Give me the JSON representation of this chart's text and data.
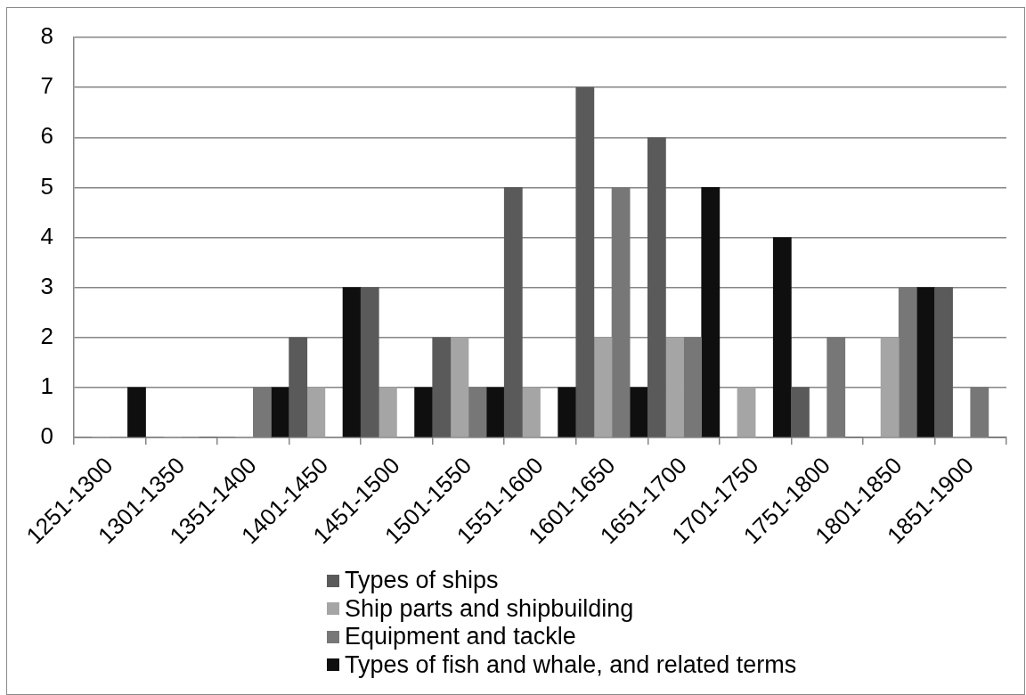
{
  "chart_data": {
    "type": "bar",
    "categories": [
      "1251-1300",
      "1301-1350",
      "1351-1400",
      "1401-1450",
      "1451-1500",
      "1501-1550",
      "1551-1600",
      "1601-1650",
      "1651-1700",
      "1701-1750",
      "1751-1800",
      "1801-1850",
      "1851-1900"
    ],
    "series": [
      {
        "name": "Types of ships",
        "color": "#5a5a5a",
        "values": [
          0,
          0,
          0,
          2,
          3,
          2,
          5,
          7,
          6,
          0,
          1,
          0,
          3
        ]
      },
      {
        "name": "Ship parts and shipbuilding",
        "color": "#a5a5a5",
        "values": [
          0,
          0,
          0,
          1,
          1,
          2,
          1,
          2,
          2,
          1,
          0,
          2,
          0
        ]
      },
      {
        "name": "Equipment and tackle",
        "color": "#777777",
        "values": [
          0,
          0,
          1,
          0,
          0,
          1,
          0,
          5,
          2,
          0,
          2,
          3,
          1
        ]
      },
      {
        "name": "Types of fish and whale, and related terms",
        "color": "#0f0f0f",
        "values": [
          1,
          0,
          1,
          3,
          1,
          1,
          1,
          1,
          5,
          4,
          0,
          3,
          0
        ]
      }
    ],
    "ylim": [
      0,
      8
    ],
    "yticks": [
      0,
      1,
      2,
      3,
      4,
      5,
      6,
      7,
      8
    ],
    "grid": "y",
    "legend": "bottom"
  }
}
